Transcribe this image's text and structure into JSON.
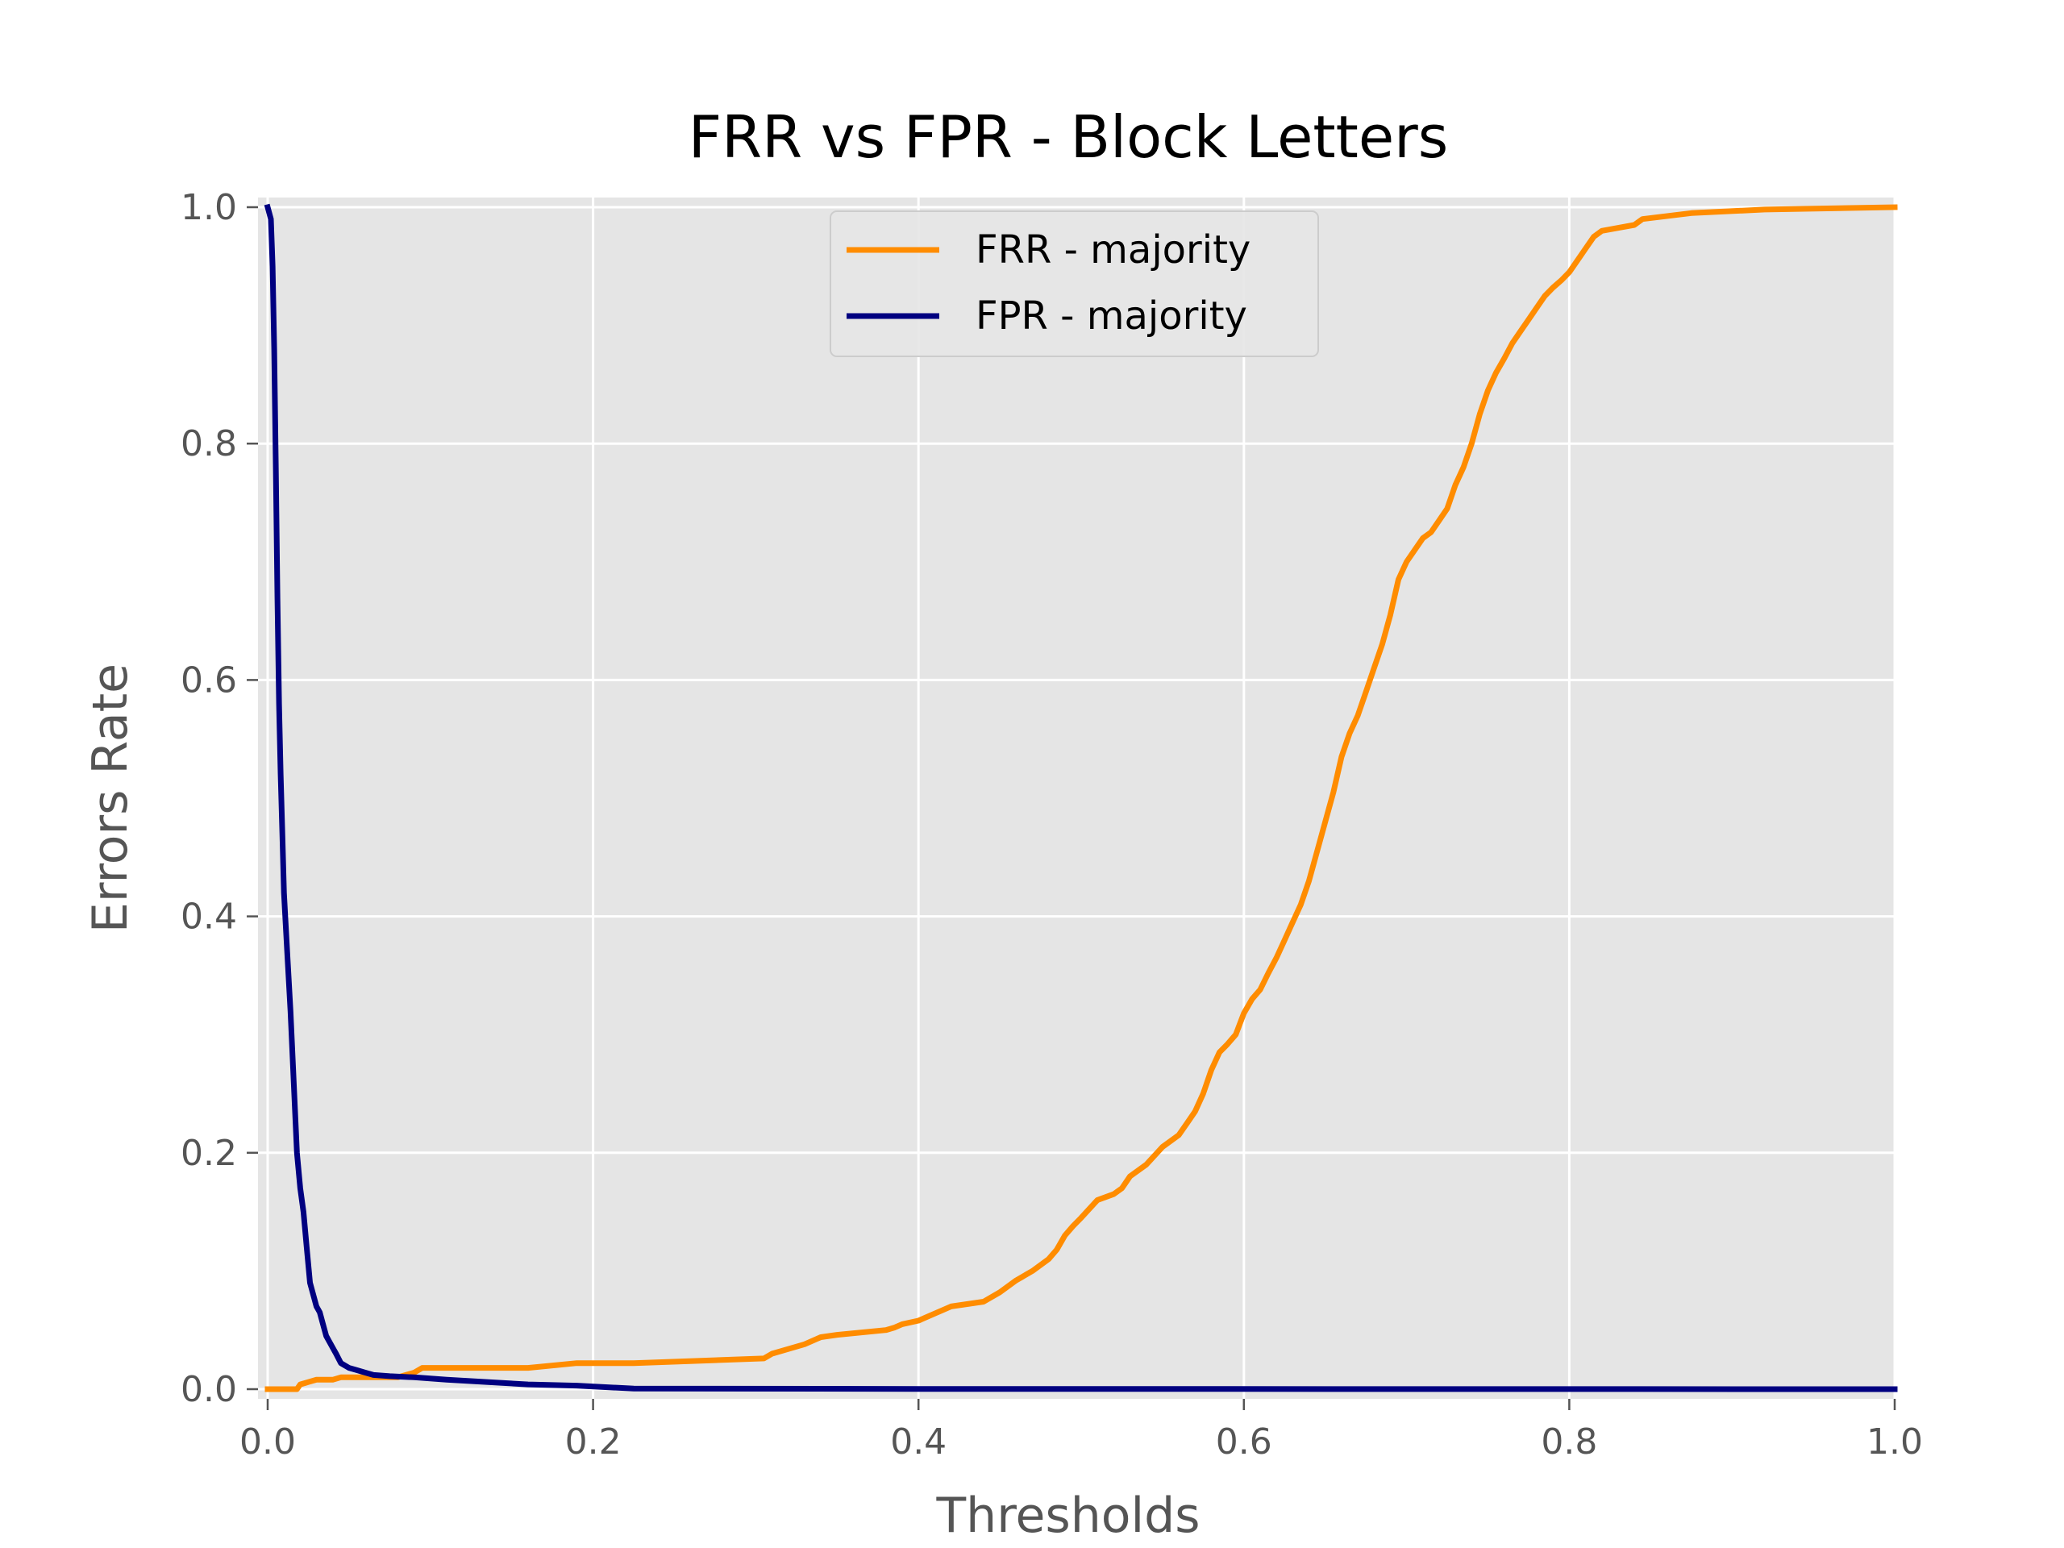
{
  "chart_data": {
    "type": "line",
    "title": "FRR vs FPR - Block Letters",
    "xlabel": "Thresholds",
    "ylabel": "Errors Rate",
    "xlim": [
      0.0,
      1.0
    ],
    "ylim": [
      0.0,
      1.0
    ],
    "xticks": [
      "0.0",
      "0.2",
      "0.4",
      "0.6",
      "0.8",
      "1.0"
    ],
    "yticks": [
      "0.0",
      "0.2",
      "0.4",
      "0.6",
      "0.8",
      "1.0"
    ],
    "grid": true,
    "legend_position": "upper-center",
    "colors": {
      "background": "#e5e5e5",
      "grid": "#ffffff",
      "frr": "#ff8c00",
      "fpr": "#000080"
    },
    "series": [
      {
        "name": "FRR - majority",
        "color": "#ff8c00",
        "x": [
          0.0,
          0.018,
          0.02,
          0.025,
          0.03,
          0.04,
          0.045,
          0.05,
          0.08,
          0.09,
          0.095,
          0.16,
          0.19,
          0.225,
          0.305,
          0.31,
          0.33,
          0.34,
          0.35,
          0.38,
          0.385,
          0.39,
          0.4,
          0.41,
          0.42,
          0.44,
          0.45,
          0.46,
          0.47,
          0.48,
          0.485,
          0.49,
          0.495,
          0.5,
          0.51,
          0.52,
          0.525,
          0.53,
          0.54,
          0.55,
          0.56,
          0.565,
          0.57,
          0.575,
          0.58,
          0.585,
          0.59,
          0.595,
          0.6,
          0.605,
          0.61,
          0.615,
          0.62,
          0.625,
          0.63,
          0.635,
          0.64,
          0.645,
          0.65,
          0.655,
          0.66,
          0.665,
          0.67,
          0.675,
          0.68,
          0.685,
          0.69,
          0.695,
          0.7,
          0.705,
          0.71,
          0.715,
          0.72,
          0.725,
          0.73,
          0.735,
          0.74,
          0.745,
          0.75,
          0.755,
          0.76,
          0.765,
          0.77,
          0.775,
          0.78,
          0.785,
          0.79,
          0.795,
          0.8,
          0.805,
          0.81,
          0.815,
          0.82,
          0.84,
          0.845,
          0.875,
          0.92,
          1.0
        ],
        "y": [
          0.0,
          0.0,
          0.004,
          0.006,
          0.008,
          0.008,
          0.01,
          0.01,
          0.01,
          0.014,
          0.018,
          0.018,
          0.022,
          0.022,
          0.026,
          0.03,
          0.038,
          0.044,
          0.046,
          0.05,
          0.052,
          0.055,
          0.058,
          0.064,
          0.07,
          0.074,
          0.082,
          0.092,
          0.1,
          0.11,
          0.118,
          0.13,
          0.138,
          0.145,
          0.16,
          0.165,
          0.17,
          0.18,
          0.19,
          0.205,
          0.215,
          0.225,
          0.235,
          0.25,
          0.27,
          0.285,
          0.292,
          0.3,
          0.318,
          0.33,
          0.338,
          0.352,
          0.365,
          0.38,
          0.395,
          0.41,
          0.43,
          0.455,
          0.48,
          0.505,
          0.535,
          0.555,
          0.57,
          0.59,
          0.61,
          0.63,
          0.655,
          0.685,
          0.7,
          0.71,
          0.72,
          0.725,
          0.735,
          0.745,
          0.765,
          0.78,
          0.8,
          0.825,
          0.845,
          0.86,
          0.872,
          0.885,
          0.895,
          0.905,
          0.915,
          0.925,
          0.932,
          0.938,
          0.945,
          0.955,
          0.965,
          0.975,
          0.98,
          0.985,
          0.99,
          0.995,
          0.998,
          1.0
        ]
      },
      {
        "name": "FPR - majority",
        "color": "#000080",
        "x": [
          0.0,
          0.002,
          0.003,
          0.004,
          0.005,
          0.006,
          0.007,
          0.008,
          0.009,
          0.01,
          0.012,
          0.014,
          0.016,
          0.018,
          0.02,
          0.022,
          0.024,
          0.026,
          0.028,
          0.03,
          0.032,
          0.034,
          0.036,
          0.038,
          0.04,
          0.042,
          0.045,
          0.05,
          0.055,
          0.06,
          0.065,
          0.075,
          0.09,
          0.11,
          0.16,
          0.19,
          0.225,
          0.4,
          1.0
        ],
        "y": [
          1.0,
          0.99,
          0.95,
          0.88,
          0.78,
          0.67,
          0.58,
          0.52,
          0.47,
          0.42,
          0.37,
          0.32,
          0.26,
          0.2,
          0.17,
          0.15,
          0.12,
          0.09,
          0.08,
          0.07,
          0.065,
          0.055,
          0.045,
          0.04,
          0.035,
          0.03,
          0.022,
          0.018,
          0.016,
          0.014,
          0.012,
          0.011,
          0.01,
          0.008,
          0.004,
          0.003,
          0.0005,
          0.0002,
          0.0
        ]
      }
    ]
  }
}
